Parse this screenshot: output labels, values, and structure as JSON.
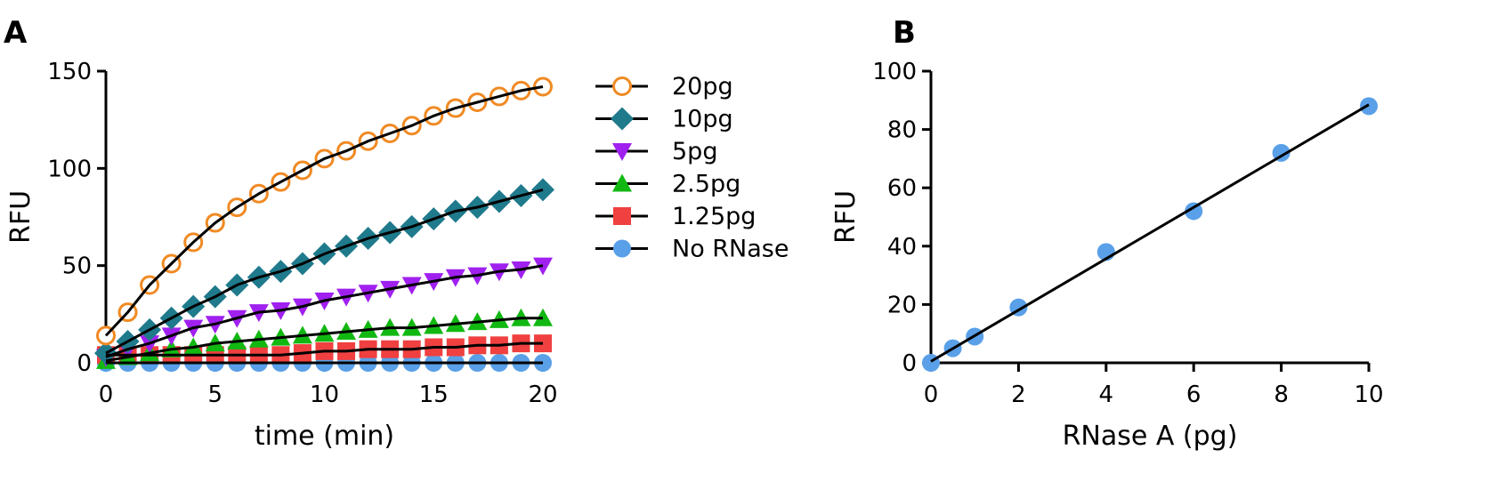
{
  "panels": {
    "a": {
      "letter": "A"
    },
    "b": {
      "letter": "B"
    }
  },
  "colors": {
    "20pg": "#F08A24",
    "10pg": "#1F7A8C",
    "5pg": "#A020F0",
    "2.5pg": "#12B812",
    "1.25pg": "#F04040",
    "No RNase": "#5AA0E8",
    "line": "#000000"
  },
  "chart_data": [
    {
      "panel": "A",
      "type": "line",
      "xlabel": "time (min)",
      "ylabel": "RFU",
      "xlim": [
        0,
        20
      ],
      "ylim": [
        0,
        150
      ],
      "xticks": [
        0,
        5,
        10,
        15,
        20
      ],
      "yticks": [
        0,
        50,
        100,
        150
      ],
      "grid": false,
      "legend_position": "right",
      "x": [
        0,
        1,
        2,
        3,
        4,
        5,
        6,
        7,
        8,
        9,
        10,
        11,
        12,
        13,
        14,
        15,
        16,
        17,
        18,
        19,
        20
      ],
      "series": [
        {
          "name": "20pg",
          "marker": "open-circle",
          "values": [
            14,
            26,
            40,
            51,
            62,
            72,
            80,
            87,
            93,
            99,
            105,
            109,
            114,
            118,
            122,
            127,
            131,
            134,
            137,
            140,
            142
          ]
        },
        {
          "name": "10pg",
          "marker": "diamond",
          "values": [
            5,
            11,
            17,
            23,
            29,
            34,
            40,
            44,
            47,
            51,
            56,
            60,
            64,
            67,
            70,
            74,
            78,
            80,
            83,
            86,
            89
          ]
        },
        {
          "name": "5pg",
          "marker": "triangle-down",
          "values": [
            3,
            7,
            10,
            14,
            18,
            20,
            23,
            26,
            27,
            29,
            32,
            34,
            36,
            38,
            40,
            42,
            44,
            45,
            47,
            48,
            50
          ]
        },
        {
          "name": "2.5pg",
          "marker": "triangle-up",
          "values": [
            1,
            3,
            5,
            7,
            8,
            10,
            11,
            12,
            13,
            14,
            15,
            16,
            17,
            18,
            18,
            19,
            20,
            21,
            22,
            23,
            23
          ]
        },
        {
          "name": "1.25pg",
          "marker": "square",
          "values": [
            4,
            4,
            4,
            4,
            4,
            4,
            4,
            4,
            4,
            5,
            6,
            6,
            7,
            7,
            7,
            8,
            8,
            9,
            9,
            10,
            10
          ]
        },
        {
          "name": "No RNase",
          "marker": "circle",
          "values": [
            0,
            0,
            0,
            0,
            0,
            0,
            0,
            0,
            0,
            0,
            0,
            0,
            0,
            0,
            0,
            0,
            0,
            0,
            0,
            0,
            0
          ]
        }
      ]
    },
    {
      "panel": "B",
      "type": "scatter",
      "xlabel": "RNase A (pg)",
      "ylabel": "RFU",
      "xlim": [
        0,
        10
      ],
      "ylim": [
        0,
        100
      ],
      "xticks": [
        0,
        2,
        4,
        6,
        8,
        10
      ],
      "yticks": [
        0,
        20,
        40,
        60,
        80,
        100
      ],
      "grid": false,
      "x": [
        0,
        0.5,
        1,
        2,
        4,
        6,
        8,
        10
      ],
      "series": [
        {
          "marker": "circle",
          "values": [
            0,
            5,
            9,
            19,
            38,
            52,
            72,
            88
          ]
        }
      ],
      "fit_line": {
        "x": [
          0,
          10
        ],
        "y": [
          0.5,
          88.5
        ]
      }
    }
  ]
}
